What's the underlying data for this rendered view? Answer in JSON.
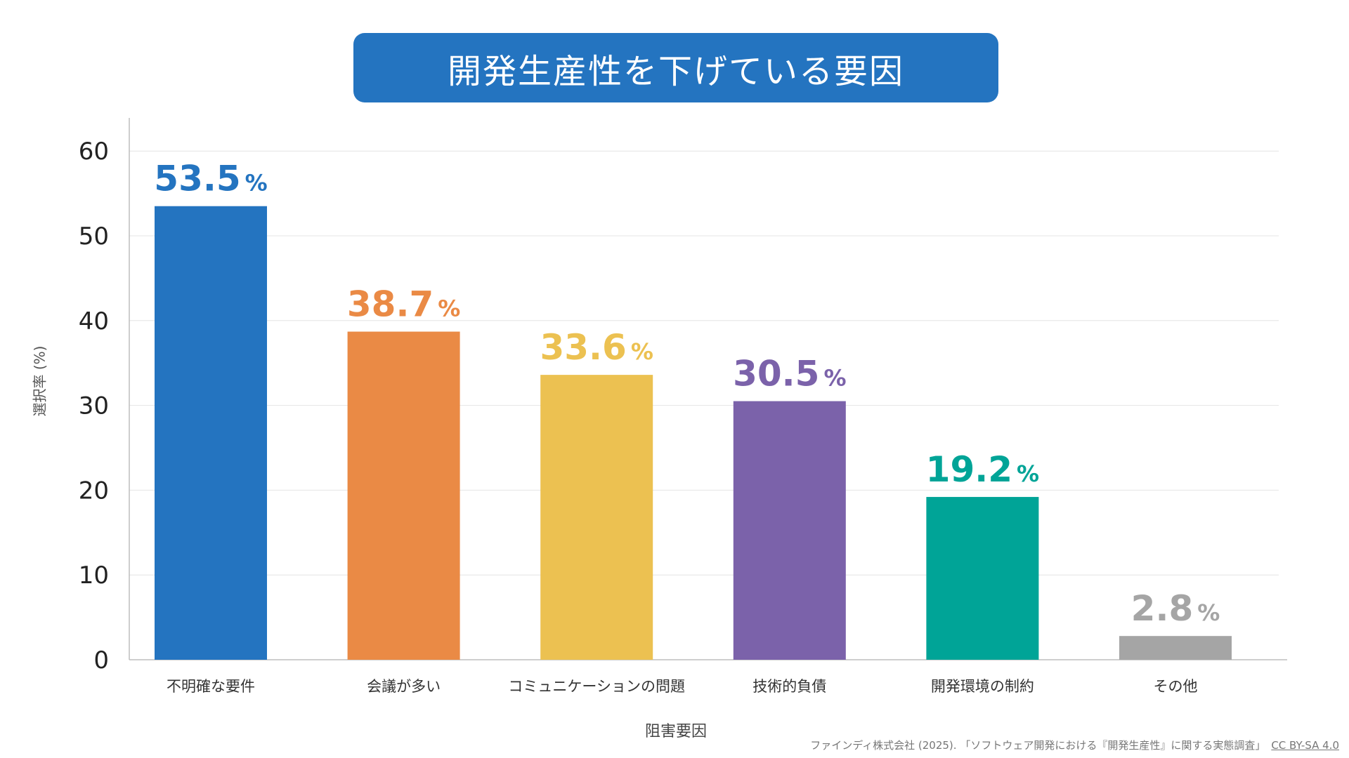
{
  "chart_data": {
    "type": "bar",
    "title": "開発生産性を下げている要因",
    "xlabel": "阻害要因",
    "ylabel": "選択率 (%)",
    "categories": [
      "不明確な要件",
      "会議が多い",
      "コミュニケーションの問題",
      "技術的負債",
      "開発環境の制約",
      "その他"
    ],
    "values": [
      53.5,
      38.7,
      33.6,
      30.5,
      19.2,
      2.8
    ],
    "value_labels": [
      "53.5",
      "38.7",
      "33.6",
      "30.5",
      "19.2",
      "2.8"
    ],
    "value_unit": "%",
    "colors": [
      "#2474c0",
      "#ea8a45",
      "#ecc151",
      "#7b62aa",
      "#00a497",
      "#a5a5a5"
    ],
    "yticks": [
      "0",
      "10",
      "20",
      "30",
      "40",
      "50",
      "60"
    ],
    "ylim": [
      0,
      63
    ],
    "grid": true,
    "legend": "none"
  },
  "source": {
    "text": "ファインディ株式会社 (2025). 「ソフトウェア開発における『開発生産性』に関する実態調査」",
    "license": "CC BY-SA 4.0"
  }
}
